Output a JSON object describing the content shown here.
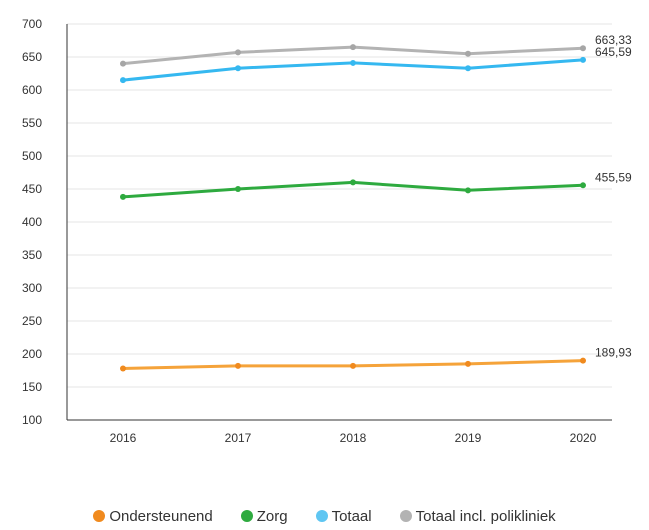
{
  "chart_data": {
    "type": "line",
    "x": [
      "2016",
      "2017",
      "2018",
      "2019",
      "2020"
    ],
    "ylim": [
      100,
      700
    ],
    "yticks": [
      "100",
      "150",
      "200",
      "250",
      "300",
      "350",
      "400",
      "450",
      "500",
      "550",
      "600",
      "650",
      "700"
    ],
    "grid": "horizontal",
    "legend_position": "bottom",
    "series": [
      {
        "name": "Ondersteunend",
        "color": "#f5a33a",
        "marker_color": "#f08a1e",
        "values": [
          178,
          182,
          182,
          185,
          189.93
        ],
        "end_label": "189,93"
      },
      {
        "name": "Zorg",
        "color": "#2eaa3f",
        "marker_color": "#2eaa3f",
        "values": [
          438,
          450,
          460,
          448,
          455.59
        ],
        "end_label": "455,59"
      },
      {
        "name": "Totaal",
        "color": "#35b8f0",
        "marker_color": "#35b8f0",
        "values": [
          615,
          633,
          641,
          633,
          645.59
        ],
        "end_label": "645,59"
      },
      {
        "name": "Totaal incl. polikliniek",
        "color": "#b3b3b3",
        "marker_color": "#a6a6a6",
        "values": [
          640,
          657,
          665,
          655,
          663.33
        ],
        "end_label": "663,33"
      }
    ]
  }
}
